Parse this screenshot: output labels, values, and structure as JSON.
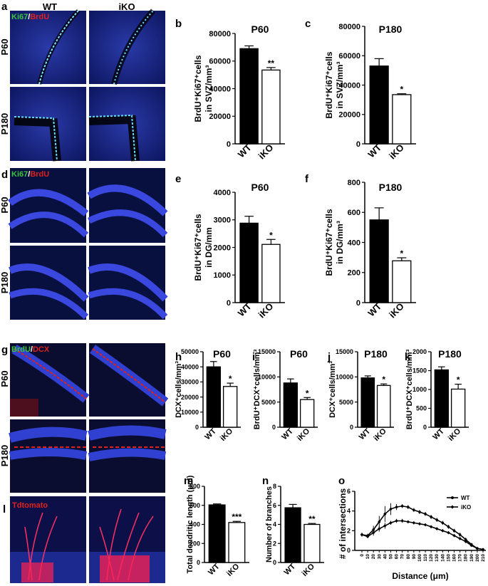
{
  "panels": {
    "a": "a",
    "b": "b",
    "c": "c",
    "d": "d",
    "e": "e",
    "f": "f",
    "g": "g",
    "h": "h",
    "i": "i",
    "j": "j",
    "k": "k",
    "l": "l",
    "m": "m",
    "n": "n",
    "o": "o"
  },
  "micrographs": {
    "col_wt": "WT",
    "col_iko": "iKO",
    "row_p60": "P60",
    "row_p180": "P180",
    "stain_a_green": "Ki67",
    "stain_a_sep": "/",
    "stain_a_red": "BrdU",
    "stain_d_green": "Ki67",
    "stain_d_sep": "/",
    "stain_d_red": "BrdU",
    "stain_g_green": "BrdU",
    "stain_g_sep": "/",
    "stain_g_red": "DCX",
    "stain_l": "Tdtomato",
    "colors": {
      "green": "#39c43b",
      "red": "#e0201c",
      "tissue": "#1a2a9a"
    }
  },
  "chart_data": [
    {
      "id": "b",
      "type": "bar",
      "title": "P60",
      "ylabel": [
        "BrdU⁺Ki67⁺cells",
        "in SVZ/mm³"
      ],
      "categories": [
        "WT",
        "iKO"
      ],
      "values": [
        69000,
        53500
      ],
      "errors": [
        2000,
        1800
      ],
      "ylim": [
        0,
        80000
      ],
      "yticks": [
        "0",
        "20000",
        "40000",
        "60000",
        "80000"
      ],
      "significance": "**"
    },
    {
      "id": "c",
      "type": "bar",
      "title": "P180",
      "ylabel": [
        "BrdU⁺Ki67⁺cells",
        "in SVZ/mm³"
      ],
      "categories": [
        "WT",
        "iKO"
      ],
      "values": [
        53000,
        33500
      ],
      "errors": [
        5000,
        600
      ],
      "ylim": [
        0,
        80000
      ],
      "yticks": [
        "0",
        "20000",
        "40000",
        "60000",
        "80000"
      ],
      "significance": "*"
    },
    {
      "id": "e",
      "type": "bar",
      "title": "P60",
      "ylabel": [
        "BrdU⁺Ki67⁺cells",
        "in DG/mm"
      ],
      "categories": [
        "WT",
        "iKO"
      ],
      "values": [
        2880,
        2110
      ],
      "errors": [
        250,
        180
      ],
      "ylim": [
        0,
        4000
      ],
      "yticks": [
        "0",
        "1000",
        "2000",
        "3000",
        "4000"
      ],
      "significance": "*"
    },
    {
      "id": "f",
      "type": "bar",
      "title": "P180",
      "ylabel": [
        "BrdU⁺Ki67⁺cells",
        "in DG/mm³"
      ],
      "categories": [
        "WT",
        "iKO"
      ],
      "values": [
        550,
        278
      ],
      "errors": [
        80,
        20
      ],
      "ylim": [
        0,
        800
      ],
      "yticks": [
        "0",
        "200",
        "400",
        "600",
        "800"
      ],
      "significance": "*"
    },
    {
      "id": "h",
      "type": "bar",
      "title": "P60",
      "ylabel": [
        "DCX⁺cells/mm³"
      ],
      "categories": [
        "WT",
        "iKO"
      ],
      "values": [
        40000,
        27000
      ],
      "errors": [
        3500,
        2200
      ],
      "ylim": [
        0,
        50000
      ],
      "yticks": [
        "0",
        "10000",
        "20000",
        "30000",
        "40000",
        "50000"
      ],
      "significance": "*"
    },
    {
      "id": "i",
      "type": "bar",
      "title": "P60",
      "ylabel": [
        "BrdU⁺DCX⁺cells/mm³"
      ],
      "categories": [
        "WT",
        "iKO"
      ],
      "values": [
        8800,
        5500
      ],
      "errors": [
        800,
        400
      ],
      "ylim": [
        0,
        15000
      ],
      "yticks": [
        "0",
        "5000",
        "10000",
        "15000"
      ],
      "significance": "*"
    },
    {
      "id": "j",
      "type": "bar",
      "title": "P180",
      "ylabel": [
        "DCX⁺cells/mm³"
      ],
      "categories": [
        "WT",
        "iKO"
      ],
      "values": [
        9800,
        8300
      ],
      "errors": [
        400,
        300
      ],
      "ylim": [
        0,
        15000
      ],
      "yticks": [
        "0",
        "5000",
        "10000",
        "15000"
      ],
      "significance": "*"
    },
    {
      "id": "k",
      "type": "bar",
      "title": "P180",
      "ylabel": [
        "BrdU⁺DCX⁺cells/mm³"
      ],
      "categories": [
        "WT",
        "iKO"
      ],
      "values": [
        1520,
        1010
      ],
      "errors": [
        80,
        130
      ],
      "ylim": [
        0,
        2000
      ],
      "yticks": [
        "0",
        "500",
        "1000",
        "1500",
        "2000"
      ],
      "significance": "*"
    },
    {
      "id": "m",
      "type": "bar",
      "title": "",
      "ylabel": [
        "Total dendritic length (μm)"
      ],
      "categories": [
        "WT",
        "iKO"
      ],
      "values": [
        605,
        420
      ],
      "errors": [
        10,
        12
      ],
      "ylim": [
        0,
        800
      ],
      "yticks": [
        "0",
        "200",
        "400",
        "600",
        "800"
      ],
      "significance": "***"
    },
    {
      "id": "n",
      "type": "bar",
      "title": "",
      "ylabel": [
        "Number of branches"
      ],
      "categories": [
        "WT",
        "iKO"
      ],
      "values": [
        5.75,
        4.0
      ],
      "errors": [
        0.35,
        0.1
      ],
      "ylim": [
        0,
        8
      ],
      "yticks": [
        "0",
        "2",
        "4",
        "6",
        "8"
      ],
      "significance": "**"
    },
    {
      "id": "o",
      "type": "line",
      "title": "",
      "xlabel": "Distance (μm)",
      "ylabel": "# of intersections",
      "xlim": [
        0,
        210
      ],
      "ylim": [
        0,
        6
      ],
      "yticks": [
        "0",
        "2",
        "4",
        "6"
      ],
      "xticks": [
        "0",
        "10",
        "20",
        "30",
        "40",
        "50",
        "60",
        "70",
        "80",
        "90",
        "100",
        "110",
        "120",
        "130",
        "140",
        "150",
        "160",
        "170",
        "180",
        "190",
        "200",
        "210"
      ],
      "legend": "top-right",
      "x": [
        0,
        10,
        20,
        30,
        40,
        50,
        60,
        70,
        80,
        90,
        100,
        110,
        120,
        130,
        140,
        150,
        160,
        170,
        180,
        190,
        200,
        210
      ],
      "series": [
        {
          "name": "WT",
          "marker": "circle",
          "values": [
            1.6,
            1.5,
            2.1,
            2.9,
            3.7,
            4.2,
            4.4,
            4.5,
            4.4,
            4.1,
            3.9,
            3.7,
            3.4,
            3.1,
            2.8,
            2.4,
            2.0,
            1.6,
            1.1,
            0.6,
            0.2,
            0.1
          ],
          "errors": [
            0.2,
            0.2,
            0.4,
            0.6,
            0.8,
            0.6,
            0.3,
            0.2,
            0.2,
            0.2,
            0.2,
            0.2,
            0.2,
            0.2,
            0.2,
            0.2,
            0.2,
            0.2,
            0.2,
            0.15,
            0.1,
            0.05
          ]
        },
        {
          "name": "iKO",
          "marker": "diamond",
          "values": [
            1.6,
            1.4,
            1.8,
            2.2,
            2.5,
            2.8,
            3.0,
            3.0,
            2.9,
            2.8,
            2.7,
            2.6,
            2.4,
            2.2,
            2.0,
            1.8,
            1.5,
            1.2,
            0.9,
            0.5,
            0.2,
            0.1
          ],
          "errors": [
            0.2,
            0.15,
            0.3,
            0.3,
            0.3,
            0.2,
            0.2,
            0.2,
            0.15,
            0.15,
            0.15,
            0.15,
            0.15,
            0.15,
            0.15,
            0.15,
            0.15,
            0.15,
            0.15,
            0.1,
            0.1,
            0.05
          ]
        }
      ]
    }
  ]
}
